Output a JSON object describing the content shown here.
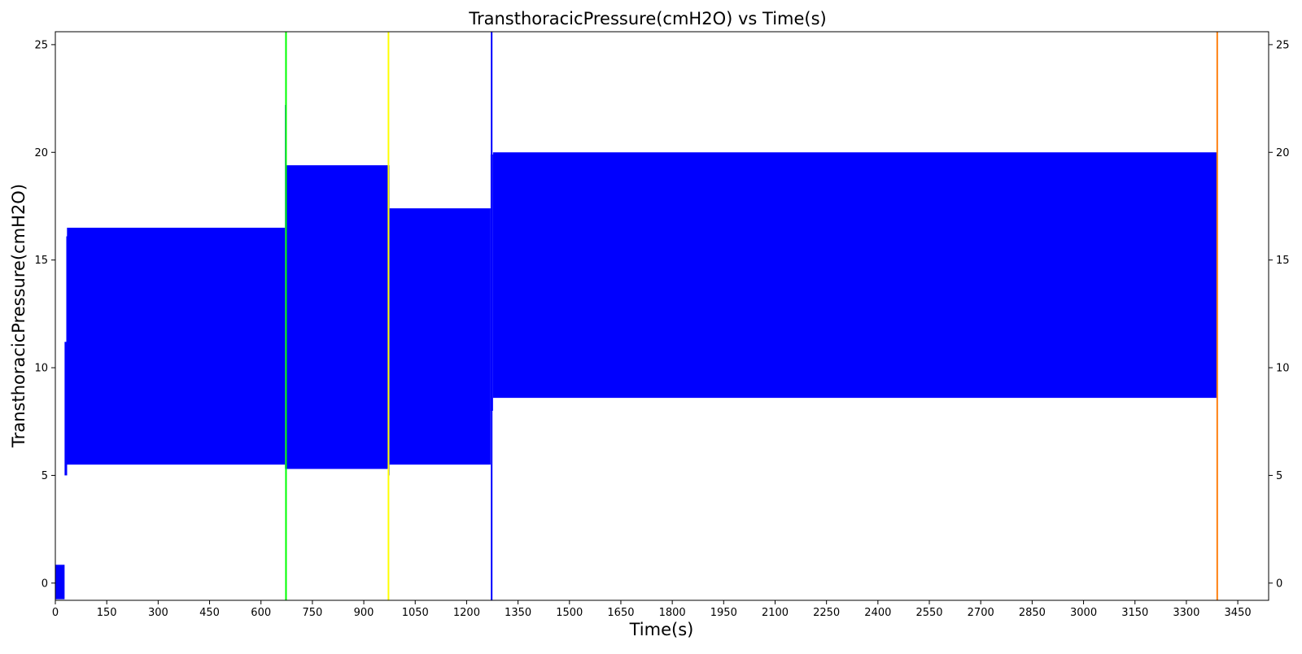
{
  "chart_data": {
    "type": "area",
    "title": "TransthoracicPressure(cmH2O) vs Time(s)",
    "xlabel": "Time(s)",
    "ylabel": "TransthoracicPressure(cmH2O)",
    "xlim": [
      0,
      3540
    ],
    "ylim": [
      -0.8,
      25.6
    ],
    "grid": false,
    "legend": "none",
    "secondary_y_axis": "mirrored right",
    "xticks": [
      0,
      150,
      300,
      450,
      600,
      750,
      900,
      1050,
      1200,
      1350,
      1500,
      1650,
      1800,
      1950,
      2100,
      2250,
      2400,
      2550,
      2700,
      2850,
      3000,
      3150,
      3300,
      3450
    ],
    "xtick_labels": [
      "0",
      "150",
      "300",
      "450",
      "600",
      "750",
      "900",
      "1050",
      "1200",
      "1350",
      "1500",
      "1650",
      "1800",
      "1950",
      "2100",
      "2250",
      "2400",
      "2550",
      "2700",
      "2850",
      "3000",
      "3150",
      "3300",
      "3450"
    ],
    "yticks": [
      0,
      5,
      10,
      15,
      20,
      25
    ],
    "ytick_labels": [
      "0",
      "5",
      "10",
      "15",
      "20",
      "25"
    ],
    "series": [
      {
        "color": "#0000ff",
        "segments": [
          {
            "x_start": 0,
            "x_end": 27,
            "min": -0.75,
            "max": 0.85
          },
          {
            "x_start": 27,
            "x_end": 32,
            "min": 5.0,
            "max": 11.2
          },
          {
            "x_start": 32,
            "x_end": 34,
            "min": 5.0,
            "max": 16.1
          },
          {
            "x_start": 34,
            "x_end": 670,
            "min": 5.5,
            "max": 16.5
          },
          {
            "x_start": 670,
            "x_end": 673,
            "min": 5.3,
            "max": 22.2
          },
          {
            "x_start": 673,
            "x_end": 970,
            "min": 5.3,
            "max": 19.4
          },
          {
            "x_start": 970,
            "x_end": 975,
            "min": 5.0,
            "max": 19.4
          },
          {
            "x_start": 975,
            "x_end": 1270,
            "min": 5.5,
            "max": 17.4
          },
          {
            "x_start": 1270,
            "x_end": 1277,
            "min": 8.0,
            "max": 19.9
          },
          {
            "x_start": 1277,
            "x_end": 3390,
            "min": 8.6,
            "max": 20.0
          }
        ]
      }
    ],
    "vertical_lines": [
      {
        "x": 673,
        "color": "#00ff00"
      },
      {
        "x": 972,
        "color": "#ffff00"
      },
      {
        "x": 1273,
        "color": "#0000ff"
      },
      {
        "x": 3390,
        "color": "#ff7f0e"
      }
    ]
  }
}
